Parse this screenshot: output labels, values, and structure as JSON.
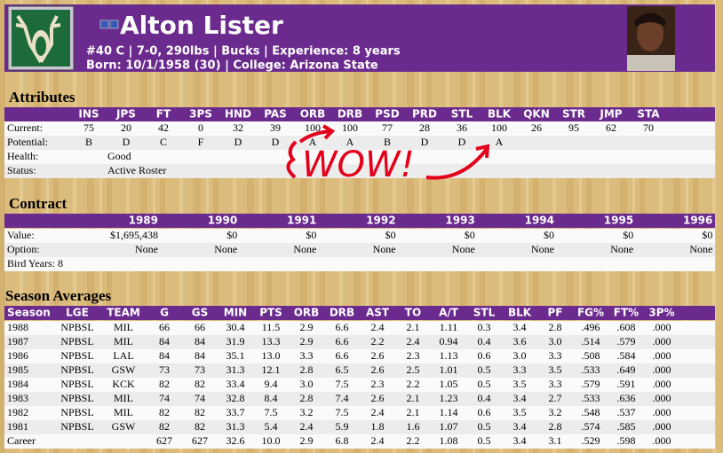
{
  "header": {
    "name": "Alton Lister",
    "details": "#40 C | 7-0, 290lbs | Bucks | Experience: 8 years",
    "born": "Born: 10/1/1958 (30) | College: Arizona State"
  },
  "attributes": {
    "title": "Attributes",
    "columns": [
      "INS",
      "JPS",
      "FT",
      "3PS",
      "HND",
      "PAS",
      "ORB",
      "DRB",
      "PSD",
      "PRD",
      "STL",
      "BLK",
      "QKN",
      "STR",
      "JMP",
      "STA"
    ],
    "rows": [
      {
        "label": "Current:",
        "cells": [
          "75",
          "20",
          "42",
          "0",
          "32",
          "39",
          "100",
          "100",
          "77",
          "28",
          "36",
          "100",
          "26",
          "95",
          "62",
          "70"
        ]
      },
      {
        "label": "Potential:",
        "cells": [
          "B",
          "D",
          "C",
          "F",
          "D",
          "D",
          "A",
          "A",
          "B",
          "D",
          "D",
          "A"
        ]
      }
    ],
    "health": {
      "label": "Health:",
      "value": "Good"
    },
    "status": {
      "label": "Status:",
      "value": "Active Roster"
    }
  },
  "annotation": "WOW!",
  "contract": {
    "title": "Contract",
    "columns": [
      "1989",
      "1990",
      "1991",
      "1992",
      "1993",
      "1994",
      "1995",
      "1996"
    ],
    "rows": [
      {
        "label": "Value:",
        "cells": [
          "$1,695,438",
          "$0",
          "$0",
          "$0",
          "$0",
          "$0",
          "$0",
          "$0"
        ]
      },
      {
        "label": "Option:",
        "cells": [
          "None",
          "None",
          "None",
          "None",
          "None",
          "None",
          "None",
          "None"
        ]
      }
    ],
    "bird_years": "Bird Years: 8"
  },
  "season": {
    "title": "Season Averages",
    "columns": [
      "Season",
      "LGE",
      "TEAM",
      "G",
      "GS",
      "MIN",
      "PTS",
      "ORB",
      "DRB",
      "AST",
      "TO",
      "A/T",
      "STL",
      "BLK",
      "PF",
      "FG%",
      "FT%",
      "3P%"
    ],
    "rows": [
      [
        "1988",
        "NPBSL",
        "MIL",
        "66",
        "66",
        "30.4",
        "11.5",
        "2.9",
        "6.6",
        "2.4",
        "2.1",
        "1.11",
        "0.3",
        "3.4",
        "2.8",
        ".496",
        ".608",
        ".000"
      ],
      [
        "1987",
        "NPBSL",
        "MIL",
        "84",
        "84",
        "31.9",
        "13.3",
        "2.9",
        "6.6",
        "2.2",
        "2.4",
        "0.94",
        "0.4",
        "3.6",
        "3.0",
        ".514",
        ".579",
        ".000"
      ],
      [
        "1986",
        "NPBSL",
        "LAL",
        "84",
        "84",
        "35.1",
        "13.0",
        "3.3",
        "6.6",
        "2.6",
        "2.3",
        "1.13",
        "0.6",
        "3.0",
        "3.3",
        ".508",
        ".584",
        ".000"
      ],
      [
        "1985",
        "NPBSL",
        "GSW",
        "73",
        "73",
        "31.3",
        "12.1",
        "2.8",
        "6.5",
        "2.6",
        "2.5",
        "1.01",
        "0.5",
        "3.3",
        "3.5",
        ".533",
        ".649",
        ".000"
      ],
      [
        "1984",
        "NPBSL",
        "KCK",
        "82",
        "82",
        "33.4",
        "9.4",
        "3.0",
        "7.5",
        "2.3",
        "2.2",
        "1.05",
        "0.5",
        "3.5",
        "3.3",
        ".579",
        ".591",
        ".000"
      ],
      [
        "1983",
        "NPBSL",
        "MIL",
        "74",
        "74",
        "32.8",
        "8.4",
        "2.8",
        "7.4",
        "2.6",
        "2.1",
        "1.23",
        "0.4",
        "3.4",
        "2.7",
        ".533",
        ".636",
        ".000"
      ],
      [
        "1982",
        "NPBSL",
        "MIL",
        "82",
        "82",
        "33.7",
        "7.5",
        "3.2",
        "7.5",
        "2.4",
        "2.1",
        "1.14",
        "0.6",
        "3.5",
        "3.2",
        ".548",
        ".537",
        ".000"
      ],
      [
        "1981",
        "NPBSL",
        "GSW",
        "82",
        "82",
        "31.3",
        "5.4",
        "2.4",
        "5.9",
        "1.8",
        "1.6",
        "1.07",
        "0.5",
        "3.4",
        "2.8",
        ".574",
        ".585",
        ".000"
      ],
      [
        "Career",
        null,
        null,
        "627",
        "627",
        "32.6",
        "10.0",
        "2.9",
        "6.8",
        "2.4",
        "2.2",
        "1.08",
        "0.5",
        "3.4",
        "3.1",
        ".529",
        ".598",
        ".000"
      ]
    ]
  }
}
